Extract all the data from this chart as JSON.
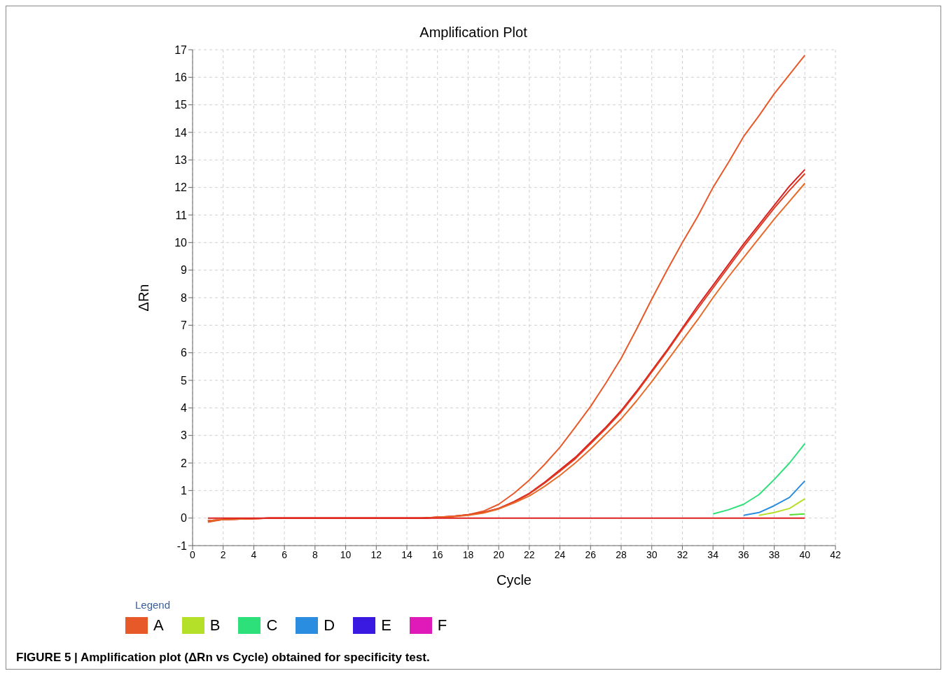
{
  "chart_data": {
    "type": "line",
    "title": "Amplification Plot",
    "xlabel": "Cycle",
    "ylabel": "ΔRn",
    "legend_title": "Legend",
    "legend": "bottom left",
    "grid": true,
    "line_style": "solid",
    "marker": "none",
    "annotations": [
      "FIGURE 5 | Amplification plot (ΔRn vs Cycle) obtained for specificity test."
    ],
    "xlim": [
      0,
      42
    ],
    "xticks": [
      0,
      2,
      4,
      6,
      8,
      10,
      12,
      14,
      16,
      18,
      20,
      22,
      24,
      26,
      28,
      30,
      32,
      34,
      36,
      38,
      40,
      42
    ],
    "ylim": [
      -1,
      17
    ],
    "yticks": [
      -1,
      0,
      1,
      2,
      3,
      4,
      5,
      6,
      7,
      8,
      9,
      10,
      11,
      12,
      13,
      14,
      15,
      16,
      17
    ],
    "x": [
      1,
      2,
      5,
      10,
      15,
      16,
      17,
      18,
      19,
      20,
      21,
      22,
      23,
      24,
      25,
      26,
      27,
      28,
      29,
      30,
      31,
      32,
      33,
      34,
      35,
      36,
      37,
      38,
      39,
      40
    ],
    "series": [
      {
        "name": "A",
        "color": "#e8592a",
        "values": [
          -0.15,
          -0.05,
          0,
          0,
          0,
          0.03,
          0.06,
          0.12,
          0.25,
          0.5,
          0.9,
          1.38,
          1.95,
          2.57,
          3.3,
          4.05,
          4.9,
          5.8,
          6.85,
          7.95,
          9.0,
          10.0,
          10.95,
          12.0,
          12.9,
          13.85,
          14.6,
          15.4,
          16.1,
          16.8
        ]
      },
      {
        "color": "#d82020",
        "values": [
          -0.1,
          -0.05,
          0,
          0,
          0,
          0.03,
          0.06,
          0.12,
          0.2,
          0.35,
          0.6,
          0.9,
          1.3,
          1.75,
          2.2,
          2.75,
          3.3,
          3.9,
          4.6,
          5.35,
          6.1,
          6.9,
          7.7,
          8.45,
          9.2,
          9.95,
          10.65,
          11.35,
          12.05,
          12.65
        ]
      },
      {
        "color": "#e03a20",
        "values": [
          -0.1,
          -0.05,
          0,
          0,
          0,
          0.03,
          0.06,
          0.12,
          0.2,
          0.35,
          0.58,
          0.88,
          1.27,
          1.7,
          2.15,
          2.7,
          3.25,
          3.85,
          4.55,
          5.3,
          6.05,
          6.85,
          7.6,
          8.35,
          9.1,
          9.85,
          10.55,
          11.25,
          11.9,
          12.5
        ]
      },
      {
        "color": "#e86a28",
        "values": [
          -0.1,
          -0.05,
          0,
          0,
          0,
          0.03,
          0.05,
          0.1,
          0.18,
          0.33,
          0.55,
          0.8,
          1.15,
          1.55,
          2.0,
          2.5,
          3.05,
          3.6,
          4.25,
          4.95,
          5.7,
          6.45,
          7.2,
          8.0,
          8.75,
          9.45,
          10.15,
          10.85,
          11.5,
          12.15
        ]
      },
      {
        "name": "B",
        "color": "#b5e02a",
        "values": [
          null,
          null,
          null,
          null,
          null,
          null,
          null,
          null,
          null,
          null,
          null,
          null,
          null,
          null,
          null,
          null,
          null,
          null,
          null,
          null,
          null,
          null,
          null,
          null,
          null,
          null,
          0.1,
          0.2,
          0.35,
          0.7
        ]
      },
      {
        "name": "C",
        "color": "#2ee07a",
        "values": [
          null,
          null,
          null,
          null,
          null,
          null,
          null,
          null,
          null,
          null,
          null,
          null,
          null,
          null,
          null,
          null,
          null,
          null,
          null,
          null,
          null,
          null,
          null,
          0.15,
          0.3,
          0.5,
          0.85,
          1.4,
          2.0,
          2.7
        ]
      },
      {
        "color": "#55dd33",
        "values": [
          null,
          null,
          null,
          null,
          null,
          null,
          null,
          null,
          null,
          null,
          null,
          null,
          null,
          null,
          null,
          null,
          null,
          null,
          null,
          null,
          null,
          null,
          null,
          null,
          null,
          null,
          null,
          null,
          0.12,
          0.15
        ]
      },
      {
        "name": "D",
        "color": "#2a8de0",
        "values": [
          null,
          null,
          null,
          null,
          null,
          null,
          null,
          null,
          null,
          null,
          null,
          null,
          null,
          null,
          null,
          null,
          null,
          null,
          null,
          null,
          null,
          null,
          null,
          null,
          null,
          0.1,
          0.2,
          0.45,
          0.75,
          1.35
        ]
      },
      {
        "name": "E",
        "color": "#3a1ae0",
        "values": [
          null,
          null,
          null,
          null,
          null,
          null,
          null,
          null,
          null,
          null,
          null,
          null,
          null,
          null,
          null,
          null,
          null,
          null,
          null,
          null,
          null,
          null,
          null,
          null,
          null,
          null,
          null,
          null,
          null,
          null
        ]
      },
      {
        "name": "F",
        "color": "#e01ab8",
        "values": [
          null,
          null,
          null,
          null,
          null,
          null,
          null,
          null,
          null,
          null,
          null,
          null,
          null,
          null,
          null,
          null,
          null,
          null,
          null,
          null,
          null,
          null,
          null,
          null,
          null,
          null,
          null,
          null,
          null,
          null
        ]
      },
      {
        "color": "#dd1f1f",
        "values": [
          0,
          0,
          0,
          0,
          0,
          0,
          0,
          0,
          0,
          0,
          0,
          0,
          0,
          0,
          0,
          0,
          0,
          0,
          0,
          0,
          0,
          0,
          0,
          0,
          0,
          0,
          0,
          0,
          0,
          0
        ]
      }
    ]
  }
}
